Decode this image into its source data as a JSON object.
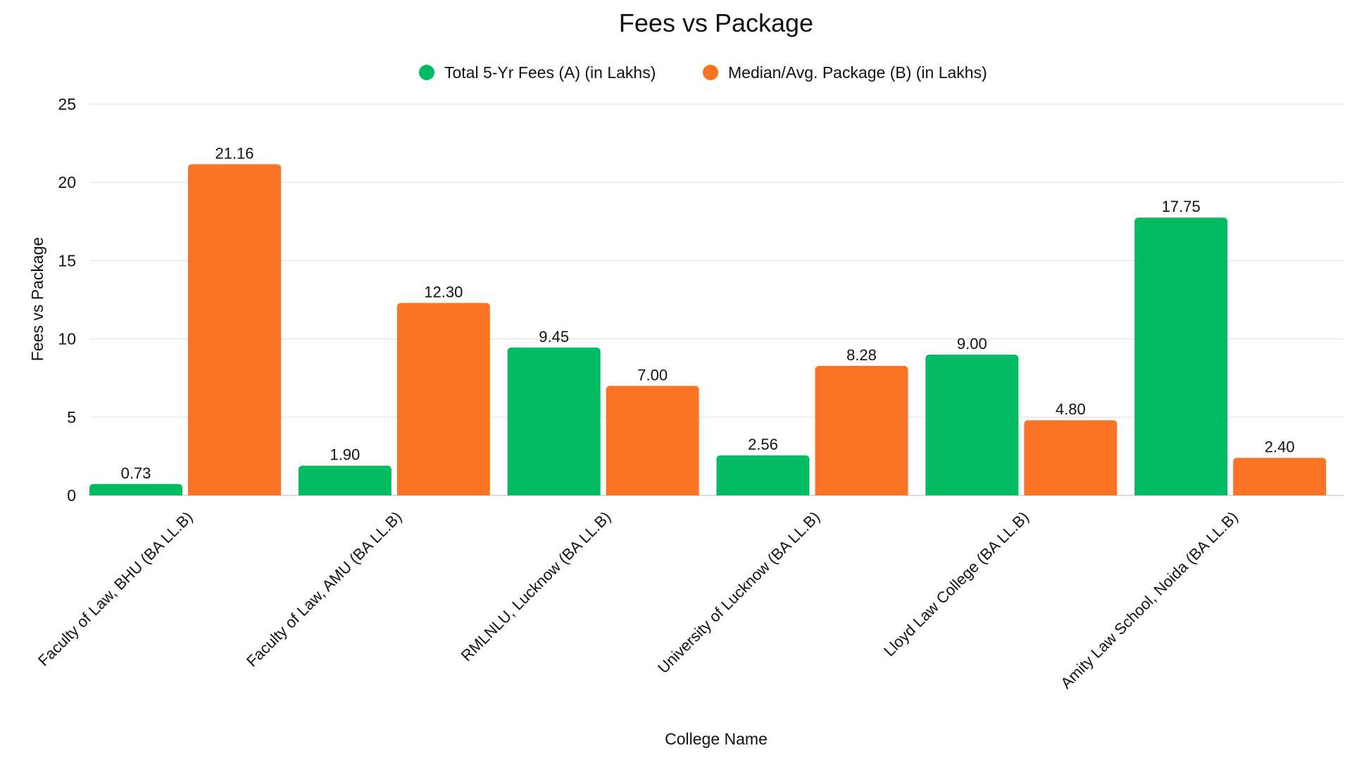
{
  "chart_data": {
    "type": "bar",
    "title": "Fees vs Package",
    "xlabel": "College Name",
    "ylabel": "Fees vs Package",
    "ylim": [
      0,
      25
    ],
    "yticks": [
      0,
      5,
      10,
      15,
      20,
      25
    ],
    "grid": true,
    "legend_position": "top-center",
    "categories": [
      "Faculty of Law, BHU (BA LL.B)",
      "Faculty of Law, AMU (BA LL.B)",
      "RMLNLU, Lucknow (BA LL.B)",
      "University of Lucknow (BA LL.B)",
      "Lloyd Law College (BA LL.B)",
      "Amity Law School, Noida (BA LL.B)"
    ],
    "series": [
      {
        "name": "Total 5-Yr Fees (A) (in Lakhs)",
        "color": "#03bb63",
        "values": [
          0.73,
          1.9,
          9.45,
          2.56,
          9.0,
          17.75
        ],
        "data_labels": [
          "0.73",
          "1.90",
          "9.45",
          "2.56",
          "9.00",
          "17.75"
        ]
      },
      {
        "name": "Median/Avg. Package (B) (in Lakhs)",
        "color": "#fb7425",
        "values": [
          21.16,
          12.3,
          7.0,
          8.28,
          4.8,
          2.4
        ],
        "data_labels": [
          "21.16",
          "12.30",
          "7.00",
          "8.28",
          "4.80",
          "2.40"
        ]
      }
    ]
  }
}
